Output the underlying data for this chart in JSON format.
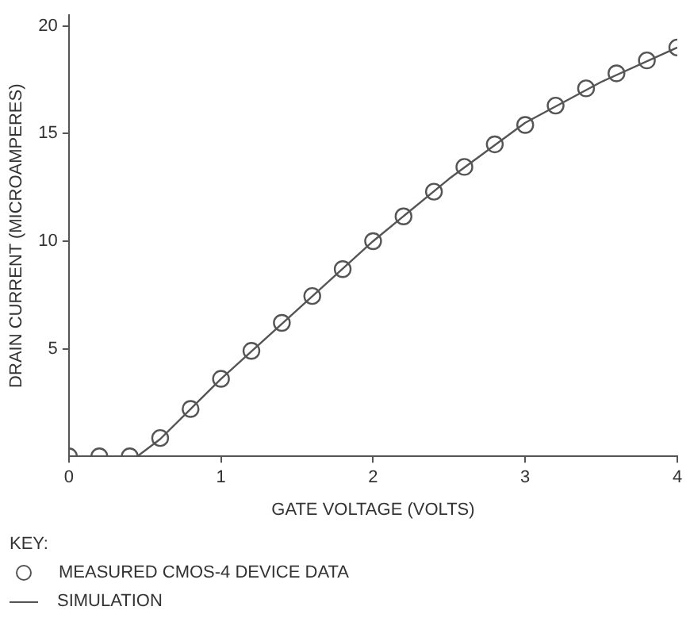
{
  "chart_data": {
    "type": "scatter",
    "xlabel": "GATE VOLTAGE (VOLTS)",
    "ylabel": "DRAIN CURRENT (MICROAMPERES)",
    "legend_title": "KEY:",
    "legend": "bottom",
    "grid": false,
    "xlim": [
      0,
      4
    ],
    "xticks": [
      0,
      1,
      2,
      3,
      4
    ],
    "ylim": [
      0,
      20.5
    ],
    "yticks": [
      5,
      10,
      15,
      20
    ],
    "series": [
      {
        "name": "MEASURED CMOS-4 DEVICE DATA",
        "marker": "circle",
        "color": "#555555",
        "x": [
          0,
          0.2,
          0.4,
          0.6,
          0.8,
          1,
          1.2,
          1.4,
          1.6,
          1.8,
          2,
          2.2,
          2.4,
          2.6,
          2.8,
          3,
          3.2,
          3.4,
          3.6,
          3.8,
          4
        ],
        "values": [
          0,
          0,
          0,
          0.85,
          2.2,
          3.6,
          4.9,
          6.2,
          7.45,
          8.7,
          10,
          11.15,
          12.3,
          13.45,
          14.5,
          15.4,
          16.3,
          17.1,
          17.8,
          18.4,
          19
        ]
      },
      {
        "name": "SIMULATION",
        "type": "line",
        "marker": "none",
        "line_style": "solid",
        "color": "#555555",
        "x": [
          0,
          0.45,
          0.6,
          0.8,
          1,
          1.5,
          2,
          2.5,
          3,
          3.5,
          4
        ],
        "values": [
          0,
          0,
          0.8,
          2.2,
          3.6,
          6.8,
          10,
          12.9,
          15.5,
          17.4,
          19
        ]
      }
    ]
  }
}
